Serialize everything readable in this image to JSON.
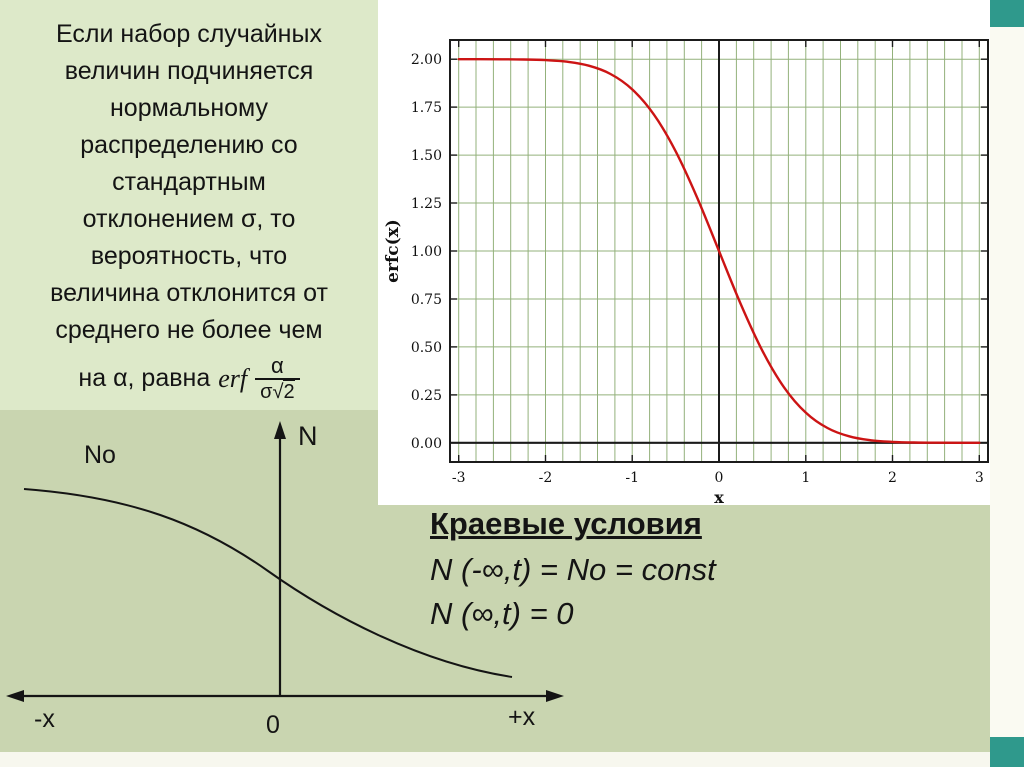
{
  "slide": {
    "intro": {
      "lines": [
        "Если набор случайных",
        "величин подчиняется",
        "нормальному",
        "распределению со",
        "стандартным",
        "отклонением σ, то",
        "вероятность, что",
        "величина отклонится от",
        "среднего не более чем"
      ],
      "formula": {
        "prefix": "на α, равна",
        "erf": "erf",
        "numerator": "α",
        "den_sigma": "σ",
        "den_root": "√",
        "den_radicand": "2"
      }
    },
    "boundary": {
      "title": "Краевые условия",
      "line1": "N (-∞,t) = No = const",
      "line2": "N (∞,t) = 0"
    },
    "diagram": {
      "n_label": "N",
      "no_label": "No",
      "minus_x": "-x",
      "zero": "0",
      "plus_x": "+x"
    },
    "colors": {
      "background": "#c9d5b0",
      "intro_panel": "#dde9c9",
      "accent_teal": "#2f998c",
      "strip": "#fafaf2"
    }
  },
  "chart_data": {
    "type": "line",
    "title": "",
    "xlabel": "x",
    "ylabel": "erfc(x)",
    "xlim": [
      -3,
      3
    ],
    "ylim": [
      0,
      2
    ],
    "x_ticks": [
      -3,
      -2,
      -1,
      0,
      1,
      2,
      3
    ],
    "y_ticks": [
      0,
      0.25,
      0.5,
      0.75,
      1,
      1.25,
      1.5,
      1.75,
      2
    ],
    "x_grid_step": 0.2,
    "y_grid_step": 0.25,
    "grid": true,
    "grid_color": "#93b17b",
    "axis_color": "#1b1b1b",
    "legend": "none",
    "series": [
      {
        "name": "erfc(x)",
        "color": "#cc1414",
        "x": [
          -3,
          -2.75,
          -2.5,
          -2.25,
          -2,
          -1.75,
          -1.5,
          -1.25,
          -1,
          -0.75,
          -0.5,
          -0.25,
          0,
          0.25,
          0.5,
          0.75,
          1,
          1.25,
          1.5,
          1.75,
          2,
          2.25,
          2.5,
          2.75,
          3
        ],
        "y": [
          2.0,
          1.9999,
          1.9996,
          1.9985,
          1.9953,
          1.9867,
          1.9661,
          1.9229,
          1.8427,
          1.7112,
          1.5205,
          1.2763,
          1.0,
          0.7237,
          0.4795,
          0.2888,
          0.1573,
          0.0771,
          0.0339,
          0.0133,
          0.0047,
          0.0015,
          0.0004,
          0.0001,
          0.0
        ]
      }
    ]
  }
}
